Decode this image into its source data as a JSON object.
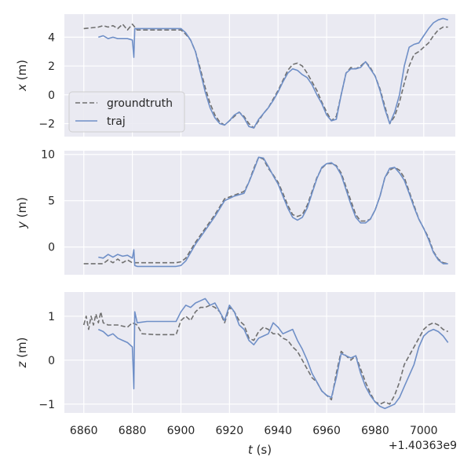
{
  "chart_data": [
    {
      "type": "line",
      "ylabel_var": "x",
      "ylabel_unit": " (m)",
      "xlim": [
        6852,
        7013
      ],
      "ylim": [
        -2.9,
        5.6
      ],
      "yticks": [
        4,
        2,
        0,
        -2
      ],
      "ytick_labels": [
        "4",
        "2",
        "0",
        "−2"
      ],
      "grid": true,
      "legend": {
        "location": "lower-left",
        "entries": [
          "groundtruth",
          "traj"
        ]
      },
      "series": [
        {
          "name": "groundtruth",
          "style": "dashed",
          "color": "#707070",
          "x": [
            6860,
            6866,
            6868,
            6870,
            6872,
            6874,
            6876,
            6878,
            6880,
            6882,
            6886,
            6892,
            6898,
            6900,
            6902,
            6904,
            6906,
            6908,
            6910,
            6912,
            6914,
            6916,
            6918,
            6920,
            6922,
            6924,
            6926,
            6928,
            6930,
            6932,
            6934,
            6936,
            6938,
            6940,
            6942,
            6944,
            6946,
            6948,
            6950,
            6952,
            6954,
            6956,
            6958,
            6960,
            6962,
            6964,
            6966,
            6968,
            6970,
            6972,
            6974,
            6976,
            6978,
            6980,
            6982,
            6984,
            6986,
            6988,
            6990,
            6992,
            6994,
            6996,
            6998,
            7000,
            7002,
            7004,
            7006,
            7008,
            7010
          ],
          "y": [
            4.6,
            4.7,
            4.8,
            4.7,
            4.8,
            4.6,
            4.9,
            4.5,
            4.9,
            4.5,
            4.5,
            4.5,
            4.5,
            4.5,
            4.2,
            3.8,
            3.0,
            1.8,
            0.5,
            -0.6,
            -1.4,
            -1.9,
            -2.1,
            -1.8,
            -1.5,
            -1.2,
            -1.5,
            -2.0,
            -2.3,
            -1.8,
            -1.3,
            -0.9,
            -0.3,
            0.3,
            1.0,
            1.7,
            2.1,
            2.2,
            2.0,
            1.5,
            0.9,
            0.3,
            -0.5,
            -1.2,
            -1.8,
            -1.5,
            0.0,
            1.5,
            1.9,
            1.8,
            2.0,
            2.3,
            1.9,
            1.3,
            0.4,
            -0.8,
            -2.0,
            -1.5,
            -0.5,
            0.8,
            2.0,
            2.8,
            3.0,
            3.3,
            3.6,
            4.1,
            4.5,
            4.7,
            4.7
          ]
        },
        {
          "name": "traj",
          "style": "solid",
          "color": "#6f8fc7",
          "x": [
            6866,
            6868,
            6870,
            6872,
            6874,
            6876,
            6878,
            6880,
            6880.6,
            6881,
            6882,
            6886,
            6892,
            6898,
            6900,
            6902,
            6904,
            6906,
            6908,
            6910,
            6912,
            6914,
            6916,
            6918,
            6920,
            6922,
            6924,
            6926,
            6928,
            6930,
            6932,
            6934,
            6936,
            6938,
            6940,
            6942,
            6944,
            6946,
            6948,
            6950,
            6952,
            6954,
            6956,
            6958,
            6960,
            6962,
            6964,
            6966,
            6968,
            6970,
            6972,
            6974,
            6976,
            6978,
            6980,
            6982,
            6984,
            6986,
            6988,
            6990,
            6992,
            6994,
            6996,
            6998,
            7000,
            7002,
            7004,
            7006,
            7008,
            7010
          ],
          "y": [
            4.0,
            4.1,
            3.9,
            4.0,
            3.9,
            3.9,
            3.9,
            3.8,
            2.6,
            4.6,
            4.6,
            4.6,
            4.6,
            4.6,
            4.6,
            4.3,
            3.8,
            3.0,
            1.6,
            0.2,
            -0.9,
            -1.6,
            -2.0,
            -2.1,
            -1.8,
            -1.4,
            -1.2,
            -1.6,
            -2.2,
            -2.3,
            -1.7,
            -1.3,
            -0.9,
            -0.4,
            0.2,
            0.9,
            1.5,
            1.8,
            1.7,
            1.4,
            1.2,
            0.7,
            0.0,
            -0.6,
            -1.4,
            -1.8,
            -1.7,
            0.0,
            1.5,
            1.8,
            1.8,
            1.9,
            2.3,
            1.8,
            1.3,
            0.3,
            -1.0,
            -2.0,
            -1.2,
            0.0,
            2.0,
            3.3,
            3.5,
            3.6,
            4.1,
            4.6,
            5.0,
            5.2,
            5.3,
            5.2
          ]
        }
      ]
    },
    {
      "type": "line",
      "ylabel_var": "y",
      "ylabel_unit": " (m)",
      "xlim": [
        6852,
        7013
      ],
      "ylim": [
        -3.0,
        10.4
      ],
      "yticks": [
        10,
        5,
        0
      ],
      "ytick_labels": [
        "10",
        "5",
        "0"
      ],
      "grid": true,
      "series": [
        {
          "name": "groundtruth",
          "style": "dashed",
          "color": "#707070",
          "x": [
            6860,
            6868,
            6870,
            6872,
            6874,
            6876,
            6878,
            6880,
            6882,
            6890,
            6898,
            6900,
            6902,
            6906,
            6910,
            6914,
            6918,
            6922,
            6926,
            6928,
            6930,
            6932,
            6934,
            6936,
            6938,
            6940,
            6942,
            6944,
            6946,
            6948,
            6950,
            6952,
            6954,
            6956,
            6958,
            6960,
            6962,
            6964,
            6966,
            6968,
            6970,
            6972,
            6974,
            6976,
            6978,
            6980,
            6982,
            6984,
            6986,
            6988,
            6990,
            6992,
            6994,
            6996,
            6998,
            7000,
            7002,
            7004,
            7006,
            7008,
            7010
          ],
          "y": [
            -1.8,
            -1.8,
            -1.4,
            -1.7,
            -1.3,
            -1.7,
            -1.4,
            -1.7,
            -1.7,
            -1.7,
            -1.7,
            -1.6,
            -1.2,
            0.5,
            2.0,
            3.5,
            5.2,
            5.6,
            6.0,
            7.0,
            8.5,
            9.7,
            9.5,
            8.5,
            7.8,
            7.0,
            5.8,
            4.5,
            3.5,
            3.3,
            3.5,
            4.5,
            6.0,
            7.5,
            8.5,
            9.0,
            9.0,
            8.8,
            8.0,
            6.5,
            5.0,
            3.5,
            2.8,
            2.8,
            3.0,
            4.0,
            5.5,
            7.5,
            8.3,
            8.6,
            8.3,
            7.5,
            6.0,
            4.5,
            3.0,
            2.0,
            1.0,
            -0.5,
            -1.3,
            -1.7,
            -1.8
          ]
        },
        {
          "name": "traj",
          "style": "solid",
          "color": "#6f8fc7",
          "x": [
            6866,
            6868,
            6870,
            6872,
            6874,
            6876,
            6878,
            6880,
            6880.6,
            6881,
            6882,
            6890,
            6898,
            6900,
            6902,
            6906,
            6910,
            6914,
            6918,
            6922,
            6926,
            6928,
            6930,
            6932,
            6934,
            6936,
            6938,
            6940,
            6942,
            6944,
            6946,
            6948,
            6950,
            6952,
            6954,
            6956,
            6958,
            6960,
            6962,
            6964,
            6966,
            6968,
            6970,
            6972,
            6974,
            6976,
            6978,
            6980,
            6982,
            6984,
            6986,
            6988,
            6990,
            6992,
            6994,
            6996,
            6998,
            7000,
            7002,
            7004,
            7006,
            7008,
            7010
          ],
          "y": [
            -1.1,
            -1.2,
            -0.8,
            -1.1,
            -0.8,
            -1.0,
            -0.9,
            -1.2,
            -0.3,
            -2.0,
            -2.1,
            -2.1,
            -2.1,
            -2.0,
            -1.5,
            0.3,
            1.8,
            3.3,
            5.0,
            5.5,
            5.8,
            7.0,
            8.3,
            9.7,
            9.6,
            8.7,
            7.7,
            6.8,
            5.5,
            4.2,
            3.2,
            2.9,
            3.2,
            4.2,
            5.8,
            7.4,
            8.6,
            9.0,
            9.1,
            8.7,
            7.8,
            6.2,
            4.6,
            3.2,
            2.6,
            2.6,
            3.0,
            4.0,
            5.5,
            7.5,
            8.5,
            8.6,
            8.0,
            7.2,
            5.8,
            4.3,
            3.0,
            2.0,
            0.8,
            -0.6,
            -1.4,
            -1.8,
            -1.8
          ]
        }
      ]
    },
    {
      "type": "line",
      "ylabel_var": "z",
      "ylabel_unit": " (m)",
      "xlabel_var": "t",
      "xlabel_unit": " (s)",
      "xlim": [
        6852,
        7013
      ],
      "ylim": [
        -1.2,
        1.55
      ],
      "yticks": [
        1,
        0,
        -1
      ],
      "ytick_labels": [
        "1",
        "0",
        "−1"
      ],
      "xticks": [
        6860,
        6880,
        6900,
        6920,
        6940,
        6960,
        6980,
        7000
      ],
      "xtick_labels": [
        "6860",
        "6880",
        "6900",
        "6920",
        "6940",
        "6960",
        "6980",
        "7000"
      ],
      "offset_text": "+1.40363e9",
      "grid": true,
      "series": [
        {
          "name": "groundtruth",
          "style": "dashed",
          "color": "#707070",
          "x": [
            6860,
            6861,
            6862,
            6863,
            6864,
            6865,
            6866,
            6867,
            6868,
            6870,
            6874,
            6878,
            6880,
            6882,
            6884,
            6890,
            6898,
            6900,
            6902,
            6904,
            6906,
            6908,
            6910,
            6912,
            6914,
            6916,
            6918,
            6920,
            6922,
            6924,
            6926,
            6928,
            6930,
            6932,
            6934,
            6936,
            6938,
            6940,
            6942,
            6944,
            6946,
            6948,
            6950,
            6952,
            6954,
            6956,
            6958,
            6960,
            6962,
            6964,
            6966,
            6968,
            6970,
            6972,
            6974,
            6976,
            6978,
            6980,
            6982,
            6984,
            6986,
            6988,
            6990,
            6992,
            6994,
            6996,
            6998,
            7000,
            7002,
            7004,
            7006,
            7008,
            7010
          ],
          "y": [
            0.8,
            1.0,
            0.7,
            1.0,
            0.8,
            1.05,
            0.85,
            1.1,
            0.85,
            0.8,
            0.8,
            0.75,
            0.85,
            0.8,
            0.6,
            0.58,
            0.58,
            0.9,
            1.0,
            0.9,
            1.1,
            1.2,
            1.2,
            1.25,
            1.2,
            1.1,
            0.85,
            1.2,
            1.1,
            0.9,
            0.8,
            0.5,
            0.45,
            0.65,
            0.75,
            0.7,
            0.6,
            0.6,
            0.5,
            0.45,
            0.3,
            0.2,
            0.0,
            -0.2,
            -0.4,
            -0.5,
            -0.7,
            -0.8,
            -0.9,
            -0.3,
            0.2,
            0.1,
            0.0,
            0.1,
            -0.2,
            -0.5,
            -0.75,
            -0.95,
            -1.0,
            -0.95,
            -1.0,
            -0.8,
            -0.5,
            -0.1,
            0.1,
            0.3,
            0.5,
            0.7,
            0.8,
            0.85,
            0.8,
            0.7,
            0.65
          ]
        },
        {
          "name": "traj",
          "style": "solid",
          "color": "#6f8fc7",
          "x": [
            6866,
            6868,
            6870,
            6872,
            6874,
            6876,
            6878,
            6880,
            6880.6,
            6881,
            6882,
            6886,
            6890,
            6898,
            6900,
            6902,
            6904,
            6906,
            6908,
            6910,
            6912,
            6914,
            6916,
            6918,
            6920,
            6922,
            6924,
            6926,
            6928,
            6930,
            6932,
            6934,
            6936,
            6938,
            6940,
            6942,
            6944,
            6946,
            6948,
            6950,
            6952,
            6954,
            6956,
            6958,
            6960,
            6962,
            6964,
            6966,
            6968,
            6970,
            6972,
            6974,
            6976,
            6978,
            6980,
            6982,
            6984,
            6986,
            6988,
            6990,
            6992,
            6994,
            6996,
            6998,
            7000,
            7002,
            7004,
            7006,
            7008,
            7010
          ],
          "y": [
            0.7,
            0.65,
            0.55,
            0.6,
            0.5,
            0.45,
            0.4,
            0.3,
            -0.65,
            1.1,
            0.85,
            0.88,
            0.88,
            0.88,
            1.1,
            1.25,
            1.2,
            1.3,
            1.35,
            1.4,
            1.25,
            1.3,
            1.1,
            0.9,
            1.25,
            1.1,
            0.8,
            0.7,
            0.45,
            0.35,
            0.5,
            0.55,
            0.6,
            0.85,
            0.75,
            0.6,
            0.65,
            0.7,
            0.45,
            0.25,
            0.0,
            -0.3,
            -0.5,
            -0.7,
            -0.8,
            -0.85,
            -0.4,
            0.15,
            0.1,
            0.05,
            0.1,
            -0.3,
            -0.6,
            -0.8,
            -0.95,
            -1.05,
            -1.1,
            -1.05,
            -1.0,
            -0.85,
            -0.6,
            -0.35,
            -0.1,
            0.3,
            0.55,
            0.65,
            0.7,
            0.65,
            0.55,
            0.4
          ]
        }
      ]
    }
  ],
  "colors": {
    "axes_bg": "#eaeaf2",
    "grid": "#ffffff",
    "text": "#262626",
    "groundtruth": "#707070",
    "traj": "#6f8fc7"
  }
}
